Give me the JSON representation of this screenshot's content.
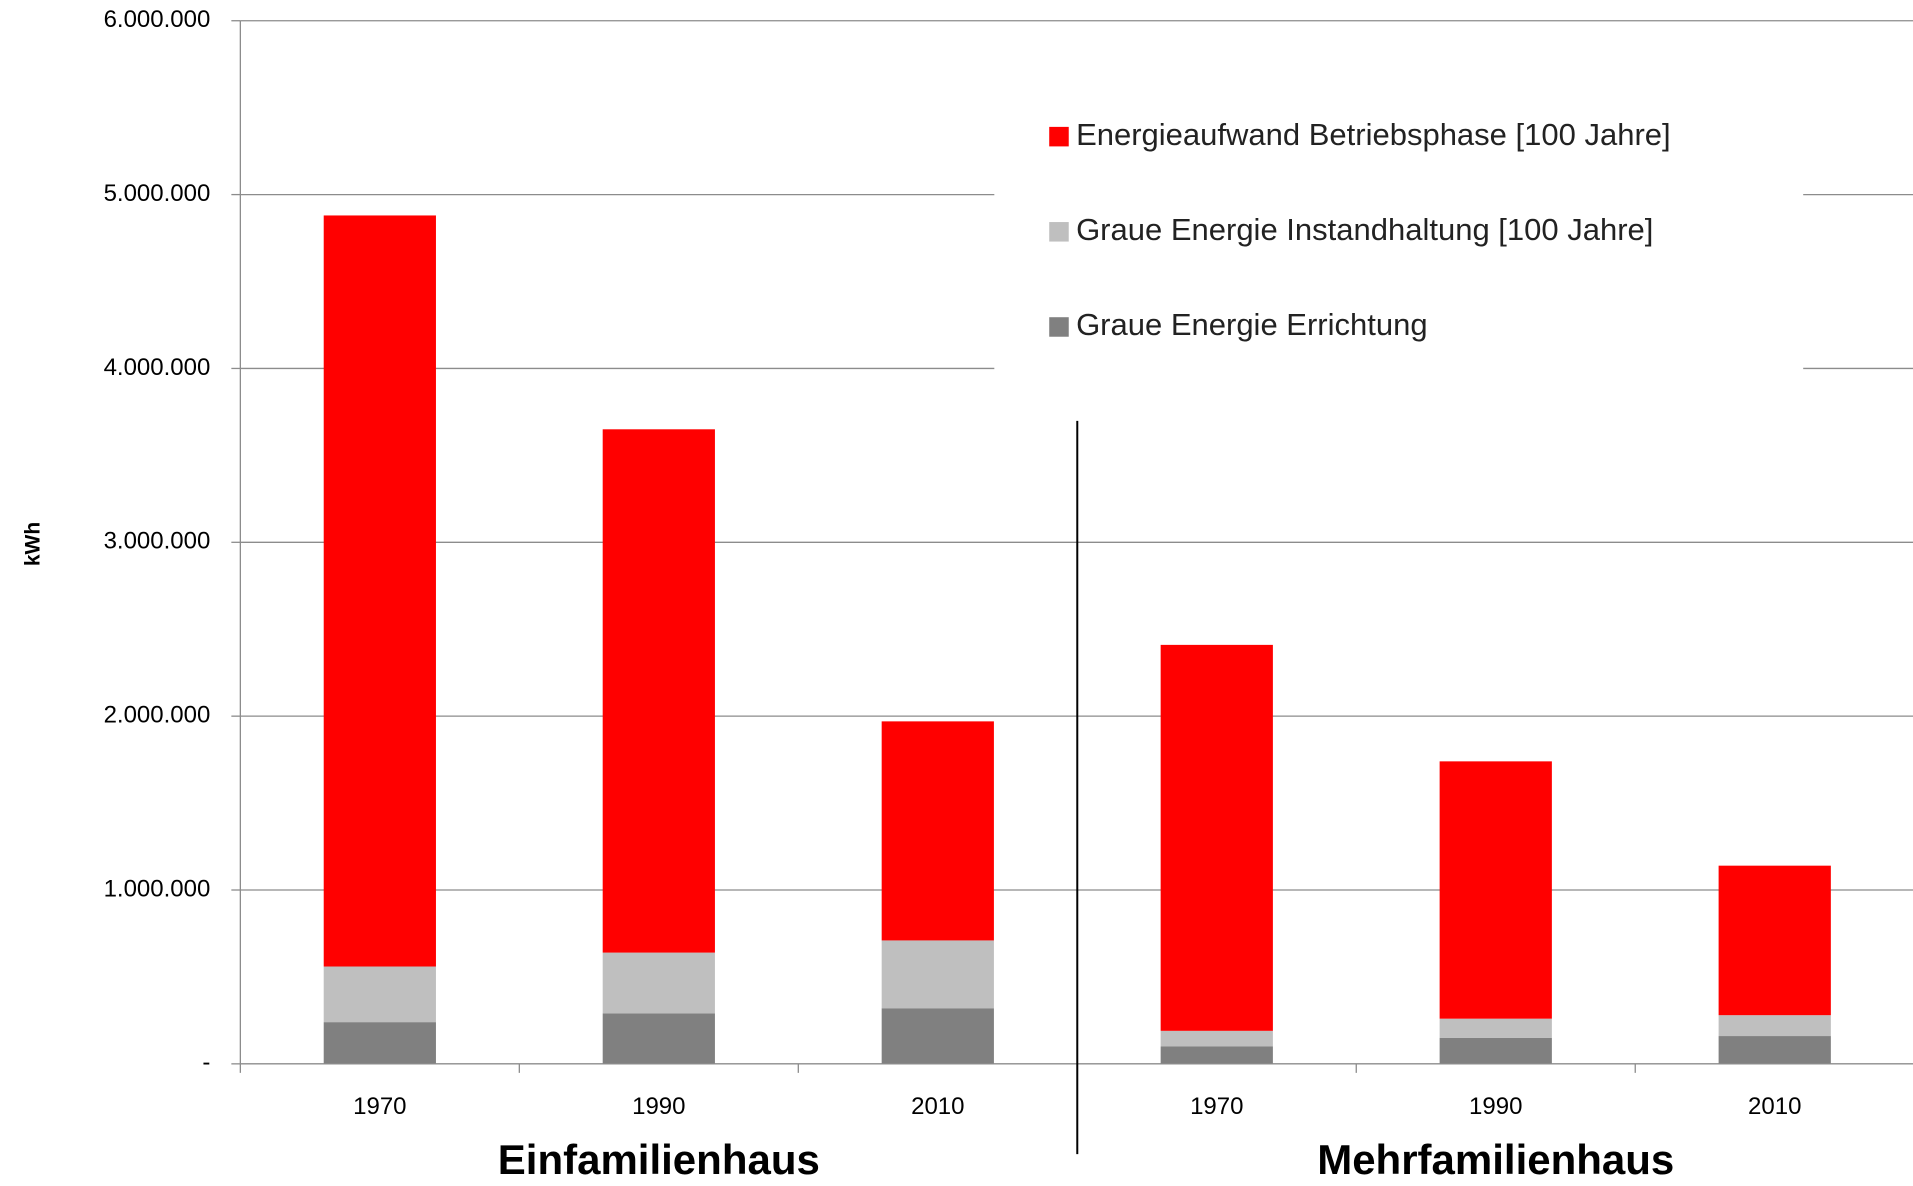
{
  "chart_data": {
    "type": "stacked_bar",
    "ylabel": "kWh",
    "categories": [
      "1970",
      "1990",
      "2010",
      "1970",
      "1990",
      "2010"
    ],
    "groups": [
      "Einfamilienhaus",
      "Mehrfamilienhaus"
    ],
    "series": [
      {
        "name": "Graue Energie Errichtung",
        "color": "#808080",
        "values": [
          240000,
          290000,
          320000,
          100000,
          150000,
          160000
        ]
      },
      {
        "name": "Graue Energie Instandhaltung [100 Jahre]",
        "color": "#bfbfbf",
        "values": [
          320000,
          350000,
          390000,
          90000,
          110000,
          120000
        ]
      },
      {
        "name": "Energieaufwand Betriebsphase [100 Jahre]",
        "color": "#ff0000",
        "values": [
          4320000,
          3010000,
          1260000,
          2220000,
          1480000,
          860000
        ]
      }
    ],
    "ylim": [
      0,
      6000000
    ],
    "yticks": [
      {
        "value": 0,
        "label": "-"
      },
      {
        "value": 1000000,
        "label": "1.000.000"
      },
      {
        "value": 2000000,
        "label": "2.000.000"
      },
      {
        "value": 3000000,
        "label": "3.000.000"
      },
      {
        "value": 4000000,
        "label": "4.000.000"
      },
      {
        "value": 5000000,
        "label": "5.000.000"
      },
      {
        "value": 6000000,
        "label": "6.000.000"
      }
    ],
    "grid": true
  }
}
